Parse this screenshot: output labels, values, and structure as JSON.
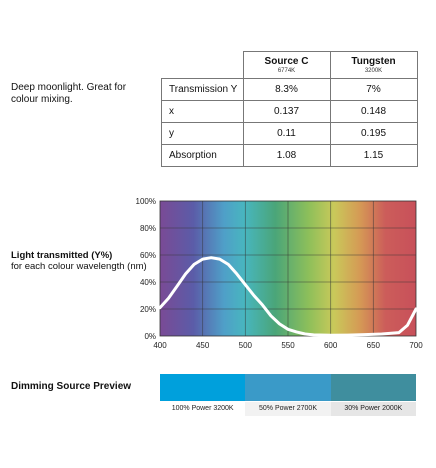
{
  "description": "Deep moonlight. Great for colour mixing.",
  "table": {
    "sources": [
      {
        "name": "Source C",
        "kelvin": "6774K"
      },
      {
        "name": "Tungsten",
        "kelvin": "3200K"
      }
    ],
    "rows": [
      {
        "label": "Transmission Y",
        "values": [
          "8.3%",
          "7%"
        ]
      },
      {
        "label": "x",
        "values": [
          "0.137",
          "0.148"
        ]
      },
      {
        "label": "y",
        "values": [
          "0.11",
          "0.195"
        ]
      },
      {
        "label": "Absorption",
        "values": [
          "1.08",
          "1.15"
        ]
      }
    ]
  },
  "graph_title": {
    "bold": "Light transmitted (Y%)",
    "sub": "for each colour wavelength (nm)"
  },
  "chart_data": {
    "type": "line",
    "xlabel": "",
    "ylabel": "",
    "x_ticks": [
      "400",
      "450",
      "500",
      "550",
      "600",
      "650",
      "700"
    ],
    "y_ticks": [
      "0%",
      "20%",
      "40%",
      "60%",
      "80%",
      "100%"
    ],
    "xlim": [
      400,
      700
    ],
    "ylim": [
      0,
      100
    ],
    "grid": true,
    "series": [
      {
        "x": [
          400,
          410,
          420,
          430,
          440,
          450,
          460,
          470,
          480,
          490,
          500,
          510,
          520,
          530,
          540,
          550,
          560,
          570,
          580,
          600,
          620,
          640,
          660,
          680,
          690,
          700
        ],
        "y": [
          21,
          28,
          37,
          46,
          53,
          57,
          58,
          57,
          53,
          46,
          38,
          30,
          23,
          15,
          9,
          5,
          3,
          1.5,
          0.8,
          0.5,
          0.7,
          1,
          1.5,
          2.5,
          8,
          20
        ]
      }
    ]
  },
  "dimming": {
    "title": "Dimming Source Preview",
    "swatches": [
      {
        "label": "100% Power 3200K",
        "color": "#00a0dc"
      },
      {
        "label": "50% Power 2700K",
        "color": "#3a9ac8"
      },
      {
        "label": "30% Power 2000K",
        "color": "#3f8e9e"
      }
    ]
  }
}
